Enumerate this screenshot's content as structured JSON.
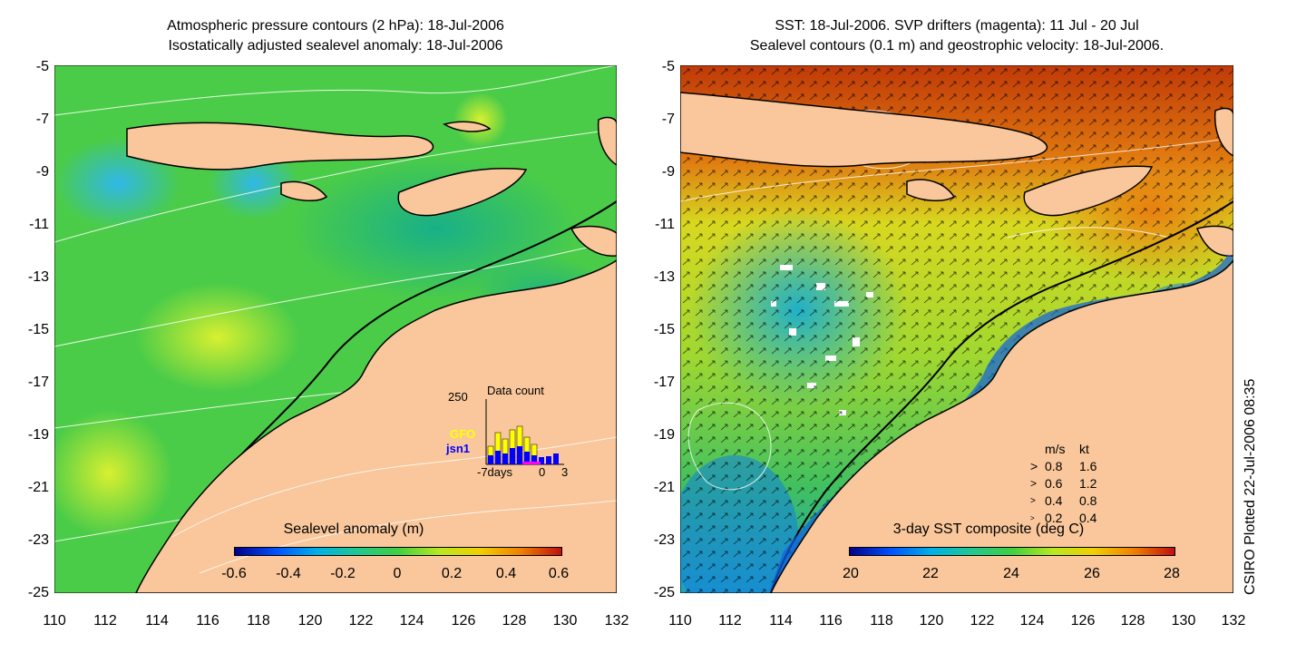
{
  "left_panel": {
    "title_line1": "Atmospheric pressure contours (2 hPa): 18-Jul-2006",
    "title_line2": "Isostatically adjusted sealevel anomaly: 18-Jul-2006",
    "colorbar": {
      "label": "Sealevel anomaly (m)",
      "ticks": [
        "-0.6",
        "-0.4",
        "-0.2",
        "0",
        "0.2",
        "0.4",
        "0.6"
      ]
    },
    "inset": {
      "title": "Data count",
      "ymax_label": "250",
      "series": [
        "GFO",
        "jsn1"
      ],
      "x_labels": [
        "-7days",
        "0",
        "3"
      ],
      "colors": {
        "GFO": "#ffff00",
        "jsn1": "#0000ff"
      }
    }
  },
  "right_panel": {
    "title_line1": "SST: 18-Jul-2006. SVP drifters (magenta): 11 Jul - 20 Jul",
    "title_line2": "Sealevel contours (0.1 m) and geostrophic velocity: 18-Jul-2006.",
    "colorbar": {
      "label": "3-day SST composite (deg C)",
      "ticks": [
        "20",
        "22",
        "24",
        "26",
        "28"
      ]
    },
    "velocity_legend": {
      "header_ms": "m/s",
      "header_kt": "kt",
      "rows": [
        {
          "ms": "0.8",
          "kt": "1.6"
        },
        {
          "ms": "0.6",
          "kt": "1.2"
        },
        {
          "ms": "0.4",
          "kt": "0.8"
        },
        {
          "ms": "0.2",
          "kt": "0.4"
        }
      ]
    }
  },
  "axes": {
    "y_labels": [
      "-5",
      "-7",
      "-9",
      "-11",
      "-13",
      "-15",
      "-17",
      "-19",
      "-21",
      "-23",
      "-25"
    ],
    "x_labels": [
      "110",
      "112",
      "114",
      "116",
      "118",
      "120",
      "122",
      "124",
      "126",
      "128",
      "130",
      "132"
    ]
  },
  "credit": "CSIRO Plotted 22-Jul-2006 08:35",
  "colors": {
    "land": "#f9c79b",
    "ocean_green": "#2fc25a",
    "sst_warm": "#c0400a",
    "sst_cool": "#0050ff"
  }
}
